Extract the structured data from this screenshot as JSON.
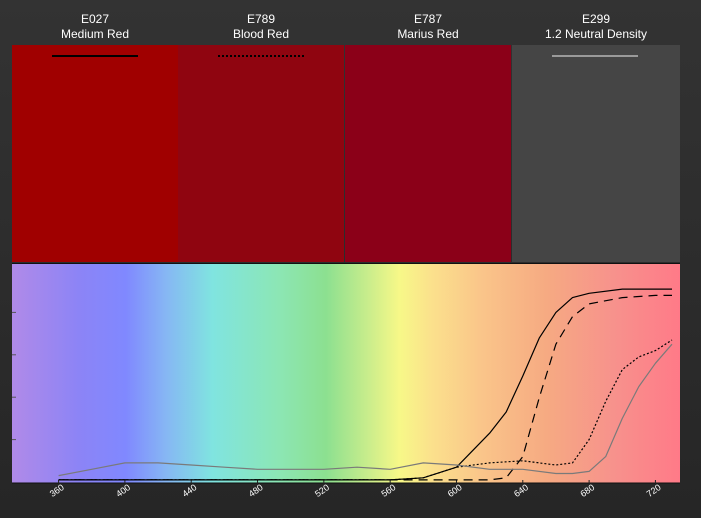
{
  "filters": [
    {
      "code": "E027",
      "name": "Medium Red",
      "color": "#a00000",
      "line": "solid"
    },
    {
      "code": "E789",
      "name": "Blood Red",
      "color": "#8f0510",
      "line": "dotted"
    },
    {
      "code": "E787",
      "name": "Marius Red",
      "color": "#8b0018",
      "line": "dashed"
    },
    {
      "code": "E299",
      "name": "1.2 Neutral Density",
      "color": "#454545",
      "line": "gray"
    }
  ],
  "chart_data": {
    "type": "line",
    "title": "",
    "xlabel": "",
    "ylabel": "",
    "xlim": [
      350,
      730
    ],
    "ylim": [
      0,
      100
    ],
    "x_ticks": [
      360,
      400,
      440,
      480,
      520,
      560,
      600,
      640,
      680,
      720
    ],
    "grid": false,
    "background": "visible spectrum gradient",
    "series": [
      {
        "style": "solid",
        "color": "#000000",
        "x": [
          360,
          400,
          440,
          480,
          520,
          560,
          580,
          600,
          620,
          630,
          640,
          650,
          660,
          670,
          680,
          700,
          720,
          730
        ],
        "y": [
          1,
          1,
          1,
          1,
          1,
          1,
          2,
          7,
          23,
          33,
          50,
          68,
          80,
          87,
          89,
          91,
          91,
          91
        ]
      },
      {
        "style": "dotted",
        "color": "#000000",
        "x": [
          360,
          400,
          440,
          480,
          520,
          560,
          580,
          600,
          620,
          640,
          660,
          670,
          680,
          690,
          700,
          710,
          720,
          730
        ],
        "y": [
          1,
          1,
          1,
          1,
          1,
          1,
          2,
          7,
          9,
          10,
          8,
          9,
          20,
          38,
          53,
          59,
          62,
          67
        ]
      },
      {
        "style": "dashed",
        "color": "#000000",
        "x": [
          360,
          400,
          440,
          480,
          520,
          560,
          600,
          620,
          630,
          640,
          650,
          660,
          670,
          680,
          700,
          720,
          730
        ],
        "y": [
          1,
          1,
          1,
          1,
          1,
          1,
          1,
          1,
          2,
          12,
          40,
          65,
          78,
          84,
          87,
          88,
          88
        ]
      },
      {
        "style": "solid",
        "color": "#7a7a7a",
        "x": [
          360,
          380,
          400,
          420,
          440,
          460,
          480,
          500,
          520,
          540,
          560,
          580,
          600,
          620,
          640,
          660,
          670,
          680,
          690,
          700,
          710,
          720,
          730
        ],
        "y": [
          3,
          6,
          9,
          9,
          8,
          7,
          6,
          6,
          6,
          7,
          6,
          9,
          8,
          6,
          6,
          4,
          4,
          5,
          12,
          30,
          45,
          56,
          65
        ]
      }
    ]
  }
}
